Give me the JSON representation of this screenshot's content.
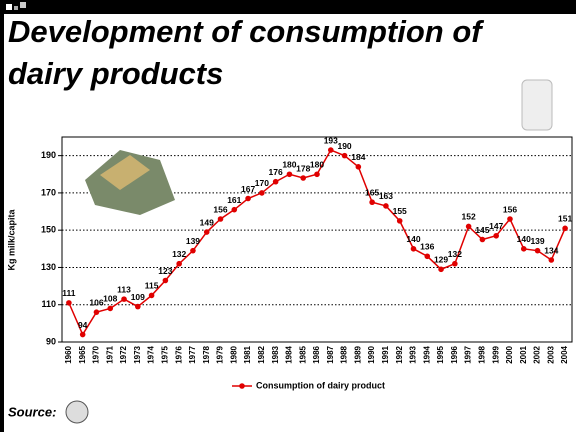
{
  "chart_data": {
    "type": "line",
    "title": "Development of consumption of dairy products",
    "y_label": "Kg milk/capita",
    "source": "Source:",
    "categories": [
      "1960",
      "1965",
      "1970",
      "1971",
      "1972",
      "1973",
      "1974",
      "1975",
      "1976",
      "1977",
      "1978",
      "1979",
      "1980",
      "1981",
      "1982",
      "1983",
      "1984",
      "1985",
      "1986",
      "1987",
      "1988",
      "1989",
      "1990",
      "1991",
      "1992",
      "1993",
      "1994",
      "1995",
      "1996",
      "1997",
      "1998",
      "1999",
      "2000",
      "2001",
      "2002",
      "2003",
      "2004"
    ],
    "series": [
      {
        "name": "Consumption of dairy product",
        "color": "#e00000",
        "values": [
          111,
          94,
          106,
          108,
          113,
          109,
          115,
          123,
          132,
          139,
          149,
          156,
          161,
          167,
          170,
          176,
          180,
          178,
          180,
          193,
          190,
          184,
          165,
          163,
          155,
          140,
          136,
          129,
          132,
          152,
          145,
          147,
          156,
          140,
          139,
          134,
          151
        ]
      }
    ],
    "ylim": [
      90,
      200
    ],
    "yticks": [
      90,
      110,
      130,
      150,
      170,
      190
    ],
    "grid": true,
    "legend": "bottom"
  }
}
